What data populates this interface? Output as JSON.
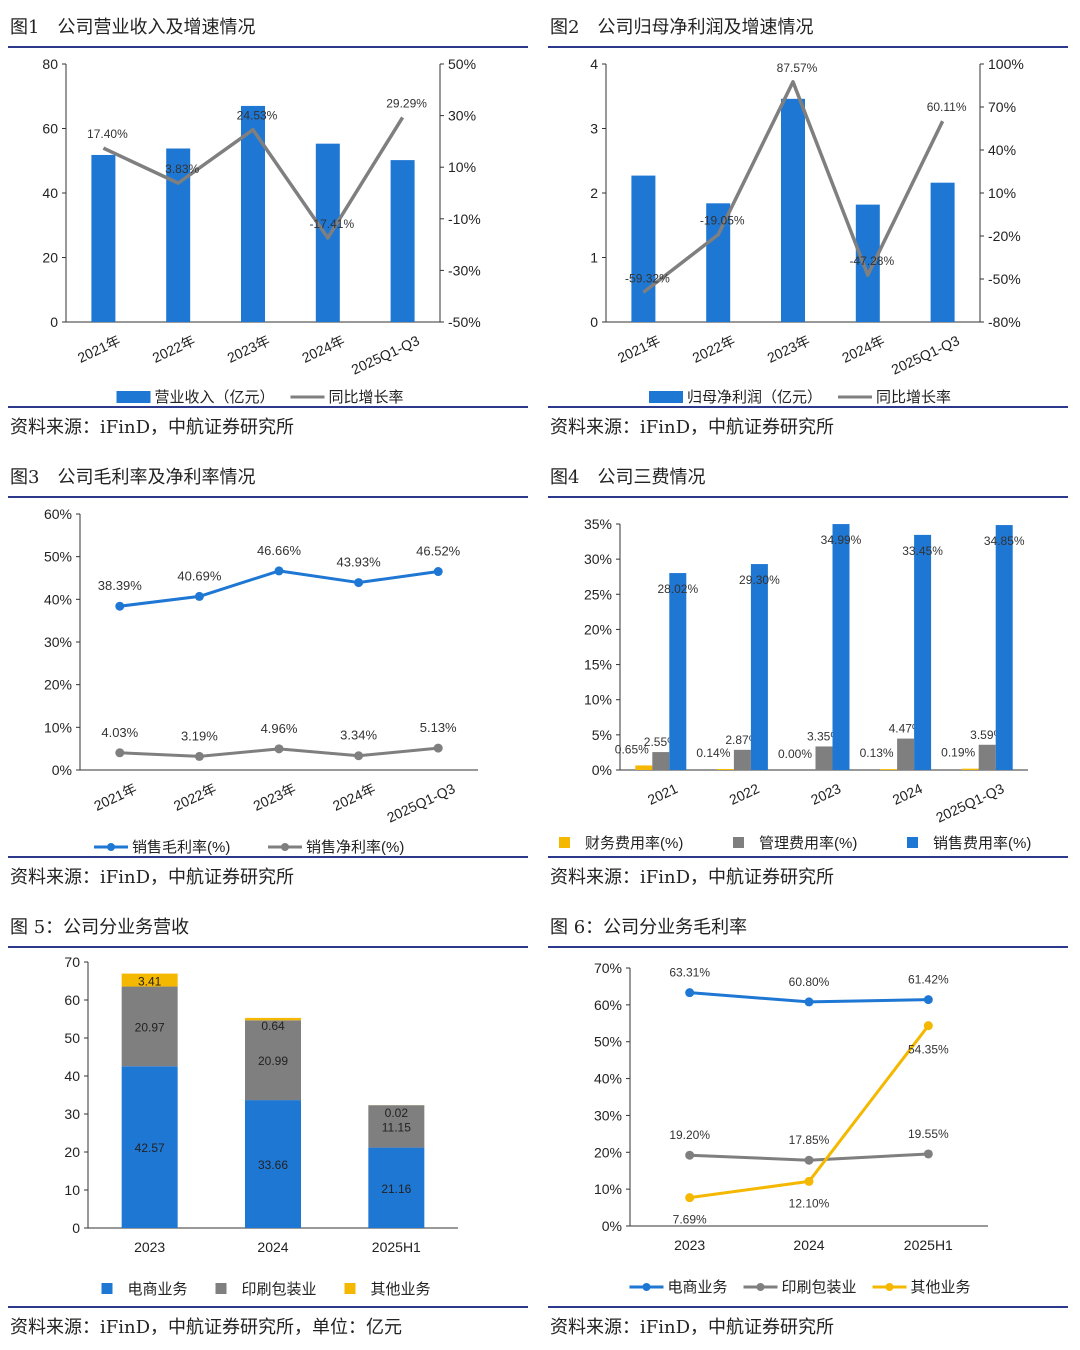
{
  "colors": {
    "blue": "#1f77d4",
    "gray": "#7f7f7f",
    "gold": "#f5b800",
    "axis": "#333333",
    "border": "#2d3a8c"
  },
  "panels": [
    {
      "title": "图1　公司营业收入及增速情况",
      "source": "资料来源：iFinD，中航证券研究所"
    },
    {
      "title": "图2　公司归母净利润及增速情况",
      "source": "资料来源：iFinD，中航证券研究所"
    },
    {
      "title": "图3　公司毛利率及净利率情况",
      "source": "资料来源：iFinD，中航证券研究所"
    },
    {
      "title": "图4　公司三费情况",
      "source": "资料来源：iFinD，中航证券研究所"
    },
    {
      "title": "图 5：公司分业务营收",
      "source": "资料来源：iFinD，中航证券研究所，单位：亿元"
    },
    {
      "title": "图 6：公司分业务毛利率",
      "source": "资料来源：iFinD，中航证券研究所"
    }
  ],
  "chart_data": [
    {
      "type": "bar_line",
      "categories": [
        "2021年",
        "2022年",
        "2023年",
        "2024年",
        "2025Q1-Q3"
      ],
      "bar": {
        "name": "营业收入（亿元）",
        "values": [
          51.8,
          53.8,
          67.0,
          55.3,
          50.2
        ]
      },
      "line": {
        "name": "同比增长率",
        "values": [
          17.4,
          3.83,
          24.53,
          -17.41,
          29.29
        ],
        "labels": [
          "17.40%",
          "3.83%",
          "24.53%",
          "-17.41%",
          "29.29%"
        ]
      },
      "y_left": {
        "min": 0,
        "max": 80,
        "ticks": [
          "0",
          "20",
          "40",
          "60",
          "80"
        ]
      },
      "y_right": {
        "min": -50,
        "max": 50,
        "ticks": [
          "-50%",
          "-30%",
          "-10%",
          "10%",
          "30%",
          "50%"
        ]
      }
    },
    {
      "type": "bar_line",
      "categories": [
        "2021年",
        "2022年",
        "2023年",
        "2024年",
        "2025Q1-Q3"
      ],
      "bar": {
        "name": "归母净利润（亿元）",
        "values": [
          2.27,
          1.84,
          3.46,
          1.82,
          2.16
        ]
      },
      "line": {
        "name": "同比增长率",
        "values": [
          -59.32,
          -19.05,
          87.57,
          -47.28,
          60.11
        ],
        "labels": [
          "-59.32%",
          "-19.05%",
          "87.57%",
          "-47.28%",
          "60.11%"
        ]
      },
      "y_left": {
        "min": 0,
        "max": 4,
        "ticks": [
          "0",
          "1",
          "2",
          "3",
          "4"
        ]
      },
      "y_right": {
        "min": -80,
        "max": 100,
        "ticks": [
          "-80%",
          "-50%",
          "-20%",
          "10%",
          "40%",
          "70%",
          "100%"
        ]
      }
    },
    {
      "type": "line",
      "categories": [
        "2021年",
        "2022年",
        "2023年",
        "2024年",
        "2025Q1-Q3"
      ],
      "series": [
        {
          "name": "销售毛利率(%)",
          "values": [
            38.39,
            40.69,
            46.66,
            43.93,
            46.52
          ],
          "labels": [
            "38.39%",
            "40.69%",
            "46.66%",
            "43.93%",
            "46.52%"
          ]
        },
        {
          "name": "销售净利率(%)",
          "values": [
            4.03,
            3.19,
            4.96,
            3.34,
            5.13
          ],
          "labels": [
            "4.03%",
            "3.19%",
            "4.96%",
            "3.34%",
            "5.13%"
          ]
        }
      ],
      "y": {
        "min": 0,
        "max": 60,
        "ticks": [
          "0%",
          "10%",
          "20%",
          "30%",
          "40%",
          "50%",
          "60%"
        ]
      }
    },
    {
      "type": "bar",
      "categories": [
        "2021",
        "2022",
        "2023",
        "2024",
        "2025Q1-Q3"
      ],
      "series": [
        {
          "name": "财务费用率(%)",
          "values": [
            0.65,
            0.14,
            0.0,
            0.13,
            0.19
          ],
          "labels": [
            "0.65%",
            "0.14%",
            "0.00%",
            "0.13%",
            "0.19%"
          ]
        },
        {
          "name": "管理费用率(%)",
          "values": [
            2.55,
            2.87,
            3.35,
            4.47,
            3.59
          ],
          "labels": [
            "2.55%",
            "2.87%",
            "3.35%",
            "4.47%",
            "3.59%"
          ]
        },
        {
          "name": "销售费用率(%)",
          "values": [
            28.02,
            29.3,
            34.99,
            33.45,
            34.85
          ],
          "labels": [
            "28.02%",
            "29.30%",
            "34.99%",
            "33.45%",
            "34.85%"
          ]
        }
      ],
      "y": {
        "min": 0,
        "max": 35,
        "ticks": [
          "0%",
          "5%",
          "10%",
          "15%",
          "20%",
          "25%",
          "30%",
          "35%"
        ]
      }
    },
    {
      "type": "stacked_bar",
      "categories": [
        "2023",
        "2024",
        "2025H1"
      ],
      "series": [
        {
          "name": "电商业务",
          "values": [
            42.57,
            33.66,
            21.16
          ],
          "labels": [
            "42.57",
            "33.66",
            "21.16"
          ]
        },
        {
          "name": "印刷包装业",
          "values": [
            20.97,
            20.99,
            11.15
          ],
          "labels": [
            "20.97",
            "20.99",
            "11.15"
          ]
        },
        {
          "name": "其他业务",
          "values": [
            3.41,
            0.64,
            0.02
          ],
          "labels": [
            "3.41",
            "0.64",
            "0.02"
          ]
        }
      ],
      "y": {
        "min": 0,
        "max": 70,
        "ticks": [
          "0",
          "10",
          "20",
          "30",
          "40",
          "50",
          "60",
          "70"
        ]
      }
    },
    {
      "type": "line",
      "categories": [
        "2023",
        "2024",
        "2025H1"
      ],
      "series": [
        {
          "name": "电商业务",
          "values": [
            63.31,
            60.8,
            61.42
          ],
          "labels": [
            "63.31%",
            "60.80%",
            "61.42%"
          ]
        },
        {
          "name": "印刷包装业",
          "values": [
            19.2,
            17.85,
            19.55
          ],
          "labels": [
            "19.20%",
            "17.85%",
            "19.55%"
          ]
        },
        {
          "name": "其他业务",
          "values": [
            7.69,
            12.1,
            54.35
          ],
          "labels": [
            "7.69%",
            "12.10%",
            "54.35%"
          ]
        }
      ],
      "y": {
        "min": 0,
        "max": 70,
        "ticks": [
          "0%",
          "10%",
          "20%",
          "30%",
          "40%",
          "50%",
          "60%",
          "70%"
        ]
      }
    }
  ]
}
